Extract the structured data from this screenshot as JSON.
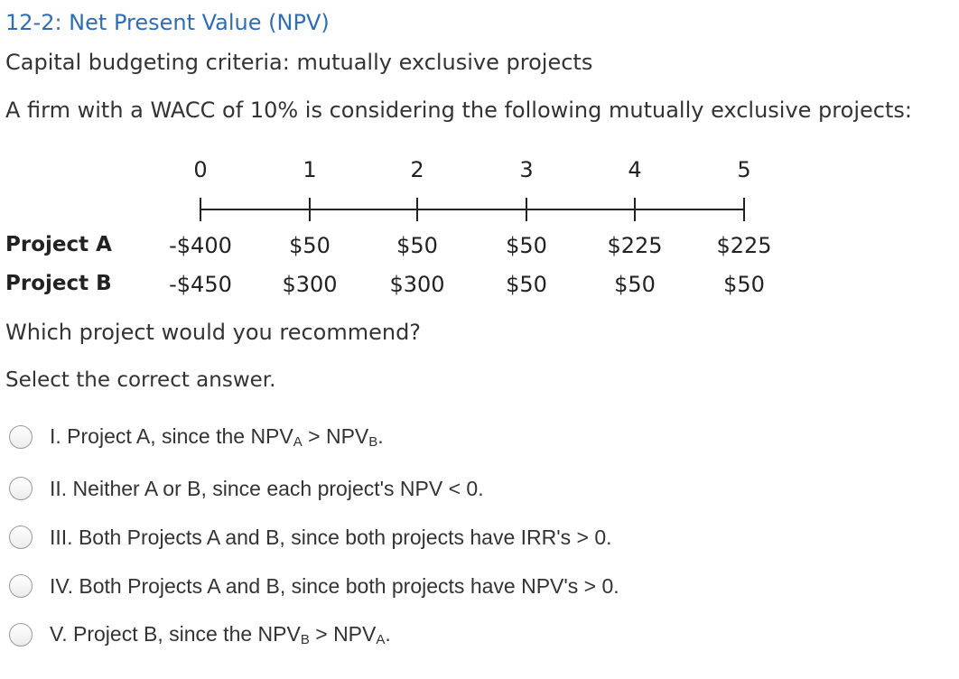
{
  "header": {
    "title": "12-2: Net Present Value (NPV)",
    "subtitle": "Capital budgeting criteria: mutually exclusive projects"
  },
  "problem": {
    "intro": "A firm with a WACC of 10% is considering the following mutually exclusive projects:",
    "periods": [
      "0",
      "1",
      "2",
      "3",
      "4",
      "5"
    ],
    "projects": [
      {
        "label": "Project A",
        "cash_flows": [
          "-$400",
          "$50",
          "$50",
          "$50",
          "$225",
          "$225"
        ]
      },
      {
        "label": "Project B",
        "cash_flows": [
          "-$450",
          "$300",
          "$300",
          "$50",
          "$50",
          "$50"
        ]
      }
    ],
    "question": "Which project would you recommend?",
    "instruction": "Select the correct answer."
  },
  "options": [
    {
      "pre": "I. Project A, since the NPV",
      "sub1": "A",
      "mid": " > NPV",
      "sub2": "B",
      "post": "."
    },
    {
      "text": "II. Neither A or B, since each project's NPV < 0."
    },
    {
      "text": "III. Both Projects A and B, since both projects have IRR's > 0."
    },
    {
      "text": "IV. Both Projects A and B, since both projects have NPV's > 0."
    },
    {
      "pre": "V. Project B, since the NPV",
      "sub1": "B",
      "mid": " > NPV",
      "sub2": "A",
      "post": "."
    }
  ],
  "colors": {
    "title": "#2f6db5",
    "text": "#333333"
  }
}
